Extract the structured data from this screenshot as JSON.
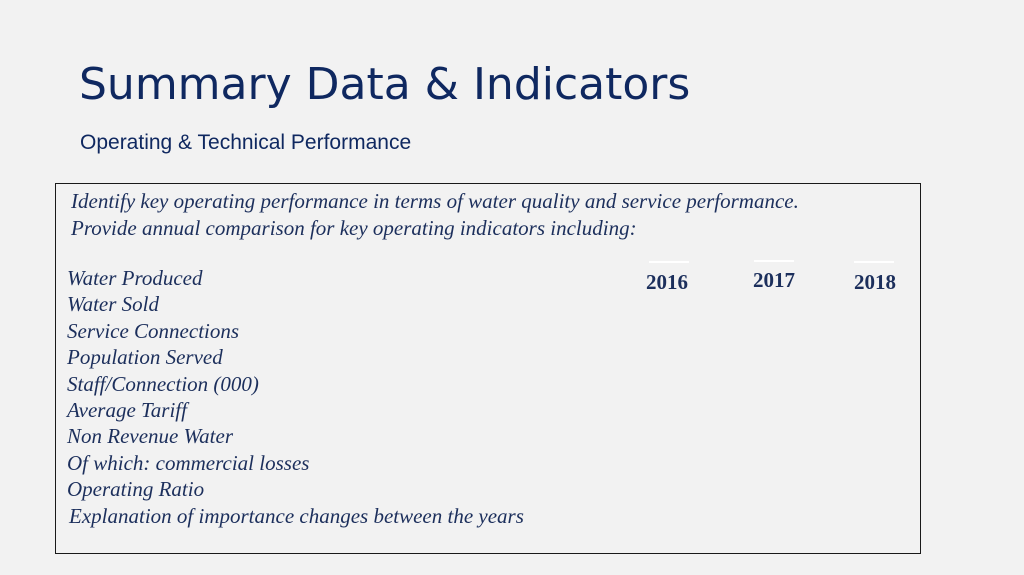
{
  "slide": {
    "title": "Summary Data & Indicators",
    "subtitle": "Operating & Technical Performance",
    "intro_line_1": "Identify key operating performance in terms of water quality and service performance.",
    "intro_line_2": "Provide annual comparison for key operating indicators including:",
    "indicators": [
      "Water Produced",
      "Water Sold",
      "Service Connections",
      "Population Served",
      "Staff/Connection (000)",
      "Average Tariff",
      "Non Revenue Water",
      "Of which: commercial losses",
      "Operating Ratio",
      "Explanation of importance changes between the years"
    ],
    "years": [
      "2016",
      "2017",
      "2018"
    ]
  }
}
